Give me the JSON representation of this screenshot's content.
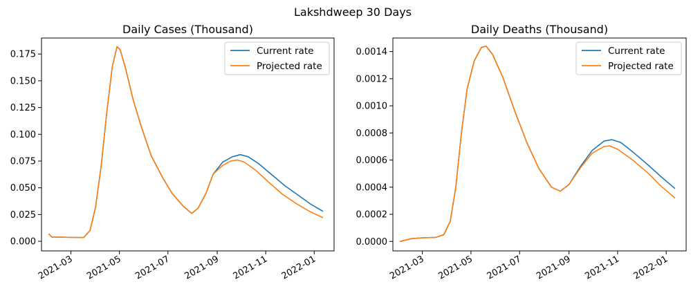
{
  "figure": {
    "suptitle": "Lakshdweep 30 Days"
  },
  "legend_location": "top-right",
  "chart_data": [
    {
      "type": "line",
      "title": "Daily Cases (Thousand)",
      "xlabel": "",
      "ylabel": "",
      "x_ticks": [
        "2021-03",
        "2021-05",
        "2021-07",
        "2021-09",
        "2021-11",
        "2022-01"
      ],
      "y_ticks": [
        "0.000",
        "0.025",
        "0.050",
        "0.075",
        "0.100",
        "0.125",
        "0.150",
        "0.175"
      ],
      "xlim": [
        "2021-01-23",
        "2022-01-26"
      ],
      "ylim": [
        -0.009,
        0.19
      ],
      "legend": "top-right",
      "series": [
        {
          "name": "Current rate",
          "color": "#1f77b4",
          "points": [
            [
              "2021-02-01",
              0.007
            ],
            [
              "2021-02-05",
              0.004
            ],
            [
              "2021-02-20",
              0.0038
            ],
            [
              "2021-03-06",
              0.0036
            ],
            [
              "2021-03-17",
              0.0035
            ],
            [
              "2021-03-25",
              0.01
            ],
            [
              "2021-04-01",
              0.032
            ],
            [
              "2021-04-08",
              0.07
            ],
            [
              "2021-04-15",
              0.12
            ],
            [
              "2021-04-22",
              0.163
            ],
            [
              "2021-04-28",
              0.182
            ],
            [
              "2021-05-02",
              0.179
            ],
            [
              "2021-05-09",
              0.161
            ],
            [
              "2021-05-18",
              0.133
            ],
            [
              "2021-05-29",
              0.106
            ],
            [
              "2021-06-10",
              0.08
            ],
            [
              "2021-06-24",
              0.06
            ],
            [
              "2021-07-06",
              0.045
            ],
            [
              "2021-07-20",
              0.033
            ],
            [
              "2021-07-31",
              0.026
            ],
            [
              "2021-08-08",
              0.031
            ],
            [
              "2021-08-18",
              0.045
            ],
            [
              "2021-08-27",
              0.063
            ],
            [
              "2021-09-08",
              0.074
            ],
            [
              "2021-09-20",
              0.079
            ],
            [
              "2021-09-30",
              0.081
            ],
            [
              "2021-10-10",
              0.079
            ],
            [
              "2021-10-24",
              0.072
            ],
            [
              "2021-11-09",
              0.062
            ],
            [
              "2021-11-25",
              0.052
            ],
            [
              "2021-12-12",
              0.043
            ],
            [
              "2021-12-27",
              0.035
            ],
            [
              "2022-01-12",
              0.028
            ]
          ]
        },
        {
          "name": "Projected rate",
          "color": "#ff7f0e",
          "points": [
            [
              "2021-02-01",
              0.007
            ],
            [
              "2021-02-05",
              0.004
            ],
            [
              "2021-02-20",
              0.0038
            ],
            [
              "2021-03-06",
              0.0036
            ],
            [
              "2021-03-17",
              0.0035
            ],
            [
              "2021-03-25",
              0.01
            ],
            [
              "2021-04-01",
              0.032
            ],
            [
              "2021-04-08",
              0.07
            ],
            [
              "2021-04-15",
              0.12
            ],
            [
              "2021-04-22",
              0.163
            ],
            [
              "2021-04-28",
              0.182
            ],
            [
              "2021-05-02",
              0.179
            ],
            [
              "2021-05-09",
              0.161
            ],
            [
              "2021-05-18",
              0.133
            ],
            [
              "2021-05-29",
              0.106
            ],
            [
              "2021-06-10",
              0.08
            ],
            [
              "2021-06-24",
              0.06
            ],
            [
              "2021-07-06",
              0.045
            ],
            [
              "2021-07-20",
              0.033
            ],
            [
              "2021-07-31",
              0.026
            ],
            [
              "2021-08-08",
              0.031
            ],
            [
              "2021-08-18",
              0.045
            ],
            [
              "2021-08-27",
              0.063
            ],
            [
              "2021-09-08",
              0.071
            ],
            [
              "2021-09-18",
              0.075
            ],
            [
              "2021-09-26",
              0.076
            ],
            [
              "2021-10-05",
              0.074
            ],
            [
              "2021-10-20",
              0.066
            ],
            [
              "2021-11-05",
              0.055
            ],
            [
              "2021-11-22",
              0.044
            ],
            [
              "2021-12-10",
              0.035
            ],
            [
              "2021-12-26",
              0.028
            ],
            [
              "2022-01-12",
              0.022
            ]
          ]
        }
      ]
    },
    {
      "type": "line",
      "title": "Daily Deaths (Thousand)",
      "xlabel": "",
      "ylabel": "",
      "x_ticks": [
        "2021-03",
        "2021-05",
        "2021-07",
        "2021-09",
        "2021-11",
        "2022-01"
      ],
      "y_ticks": [
        "0.0000",
        "0.0002",
        "0.0004",
        "0.0006",
        "0.0008",
        "0.0010",
        "0.0012",
        "0.0014"
      ],
      "xlim": [
        "2021-01-23",
        "2022-01-26"
      ],
      "ylim": [
        -7e-05,
        0.0015
      ],
      "legend": "top-right",
      "series": [
        {
          "name": "Current rate",
          "color": "#1f77b4",
          "points": [
            [
              "2021-02-01",
              0.0
            ],
            [
              "2021-02-15",
              2e-05
            ],
            [
              "2021-03-01",
              2.7e-05
            ],
            [
              "2021-03-18",
              3e-05
            ],
            [
              "2021-03-28",
              5e-05
            ],
            [
              "2021-04-05",
              0.00015
            ],
            [
              "2021-04-12",
              0.0004
            ],
            [
              "2021-04-19",
              0.0008
            ],
            [
              "2021-04-26",
              0.00112
            ],
            [
              "2021-05-05",
              0.00133
            ],
            [
              "2021-05-14",
              0.00143
            ],
            [
              "2021-05-20",
              0.00144
            ],
            [
              "2021-05-28",
              0.00138
            ],
            [
              "2021-06-10",
              0.00121
            ],
            [
              "2021-06-25",
              0.00096
            ],
            [
              "2021-07-10",
              0.00073
            ],
            [
              "2021-07-25",
              0.00054
            ],
            [
              "2021-08-10",
              0.0004
            ],
            [
              "2021-08-21",
              0.00037
            ],
            [
              "2021-09-01",
              0.00042
            ],
            [
              "2021-09-15",
              0.00055
            ],
            [
              "2021-09-30",
              0.00067
            ],
            [
              "2021-10-15",
              0.00074
            ],
            [
              "2021-10-25",
              0.00075
            ],
            [
              "2021-11-05",
              0.00073
            ],
            [
              "2021-11-20",
              0.00066
            ],
            [
              "2021-12-10",
              0.00056
            ],
            [
              "2021-12-25",
              0.00048
            ],
            [
              "2022-01-12",
              0.00039
            ]
          ]
        },
        {
          "name": "Projected rate",
          "color": "#ff7f0e",
          "points": [
            [
              "2021-02-01",
              0.0
            ],
            [
              "2021-02-15",
              2e-05
            ],
            [
              "2021-03-01",
              2.7e-05
            ],
            [
              "2021-03-18",
              3e-05
            ],
            [
              "2021-03-28",
              5e-05
            ],
            [
              "2021-04-05",
              0.00015
            ],
            [
              "2021-04-12",
              0.0004
            ],
            [
              "2021-04-19",
              0.0008
            ],
            [
              "2021-04-26",
              0.00112
            ],
            [
              "2021-05-05",
              0.00133
            ],
            [
              "2021-05-14",
              0.00143
            ],
            [
              "2021-05-20",
              0.00144
            ],
            [
              "2021-05-28",
              0.00138
            ],
            [
              "2021-06-10",
              0.00121
            ],
            [
              "2021-06-25",
              0.00096
            ],
            [
              "2021-07-10",
              0.00073
            ],
            [
              "2021-07-25",
              0.00054
            ],
            [
              "2021-08-10",
              0.0004
            ],
            [
              "2021-08-21",
              0.00037
            ],
            [
              "2021-09-01",
              0.00042
            ],
            [
              "2021-09-15",
              0.00054
            ],
            [
              "2021-09-30",
              0.00065
            ],
            [
              "2021-10-15",
              0.0007
            ],
            [
              "2021-10-22",
              0.000705
            ],
            [
              "2021-11-01",
              0.00068
            ],
            [
              "2021-11-20",
              0.0006
            ],
            [
              "2021-12-10",
              0.0005
            ],
            [
              "2021-12-25",
              0.00041
            ],
            [
              "2022-01-12",
              0.00032
            ]
          ]
        }
      ]
    }
  ]
}
